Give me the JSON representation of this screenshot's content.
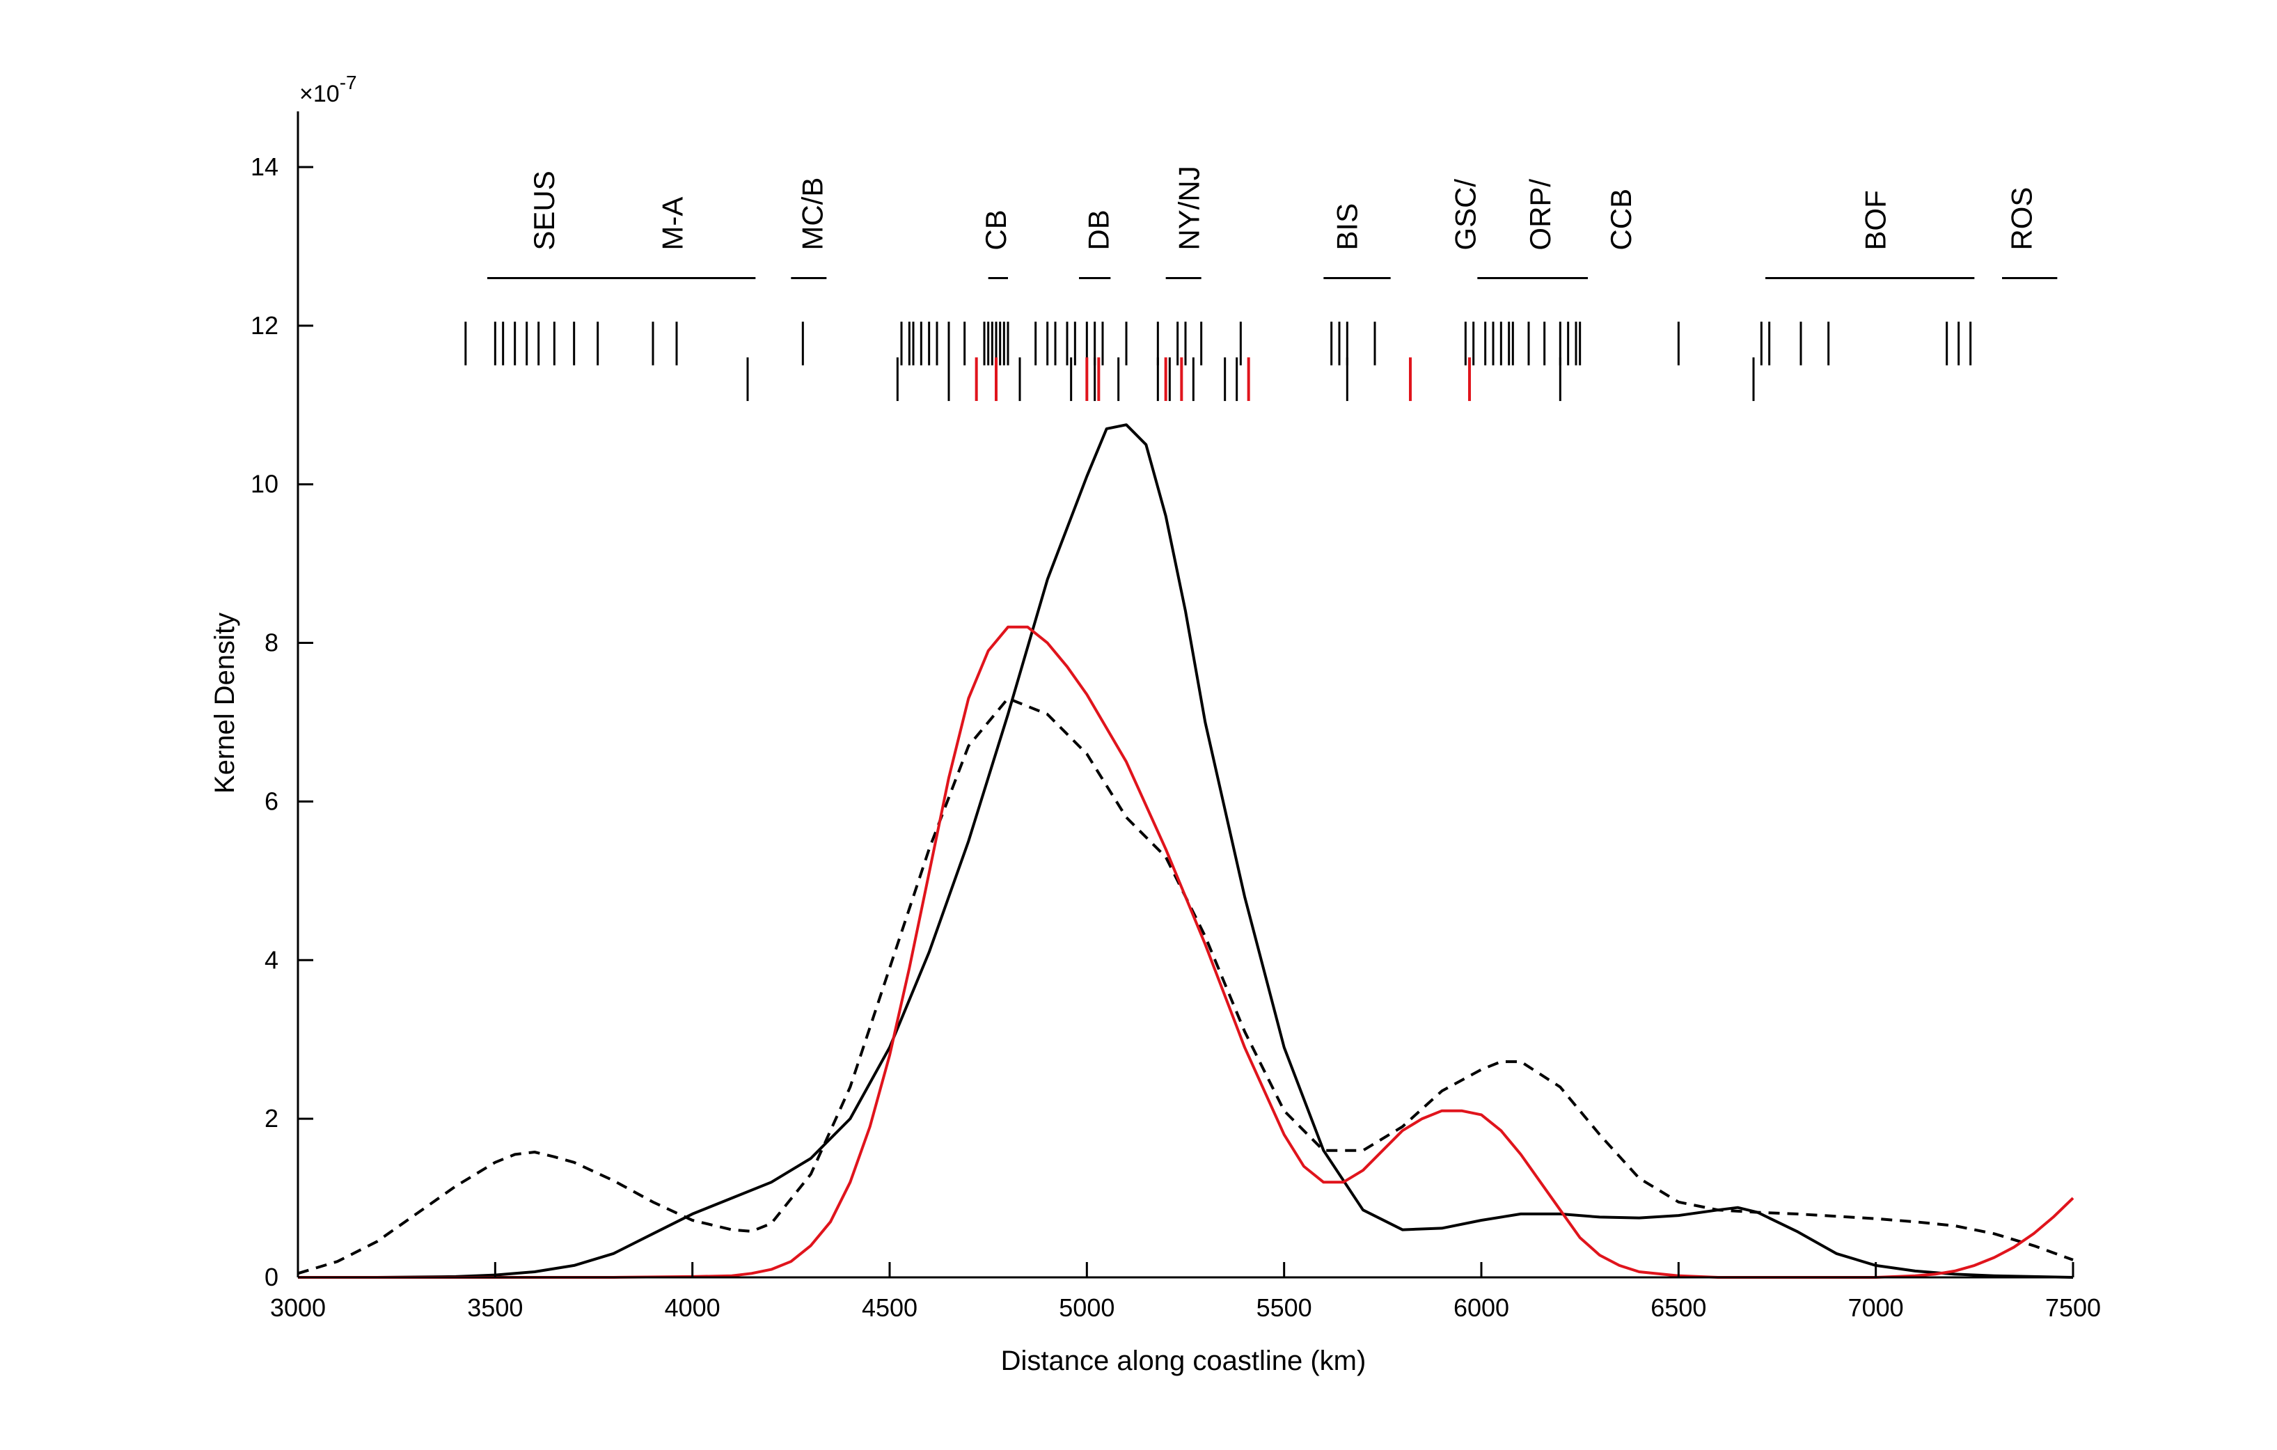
{
  "chart_data": {
    "type": "line",
    "xlabel": "Distance along coastline (km)",
    "ylabel": "Kernel Density",
    "y_multiplier": "×10",
    "y_multiplier_exp": "-7",
    "xlim": [
      3000,
      7500
    ],
    "ylim": [
      0,
      14.5
    ],
    "x_ticks": [
      3000,
      3500,
      4000,
      4500,
      5000,
      5500,
      6000,
      6500,
      7000,
      7500
    ],
    "y_ticks": [
      0,
      2,
      4,
      6,
      8,
      10,
      12,
      14
    ],
    "grid": false,
    "series": [
      {
        "style": "solid",
        "color": "#000000",
        "x": [
          3000,
          3200,
          3400,
          3500,
          3600,
          3700,
          3800,
          3900,
          4000,
          4100,
          4200,
          4300,
          4400,
          4500,
          4600,
          4700,
          4800,
          4900,
          5000,
          5050,
          5100,
          5150,
          5200,
          5250,
          5300,
          5400,
          5500,
          5600,
          5700,
          5800,
          5900,
          6000,
          6100,
          6200,
          6300,
          6400,
          6500,
          6600,
          6650,
          6700,
          6800,
          6900,
          7000,
          7100,
          7200,
          7300,
          7400,
          7500
        ],
        "y": [
          0,
          0,
          0.01,
          0.03,
          0.07,
          0.15,
          0.3,
          0.55,
          0.8,
          1.0,
          1.2,
          1.5,
          2.0,
          2.9,
          4.1,
          5.5,
          7.1,
          8.8,
          10.1,
          10.7,
          10.75,
          10.5,
          9.6,
          8.4,
          7.0,
          4.8,
          2.9,
          1.6,
          0.85,
          0.6,
          0.62,
          0.72,
          0.8,
          0.8,
          0.76,
          0.75,
          0.78,
          0.85,
          0.88,
          0.82,
          0.58,
          0.3,
          0.15,
          0.08,
          0.04,
          0.02,
          0.01,
          0
        ]
      },
      {
        "style": "dashed",
        "color": "#000000",
        "x": [
          3000,
          3100,
          3200,
          3300,
          3400,
          3500,
          3550,
          3600,
          3650,
          3700,
          3800,
          3900,
          4000,
          4100,
          4150,
          4200,
          4300,
          4400,
          4500,
          4600,
          4700,
          4800,
          4900,
          5000,
          5100,
          5200,
          5300,
          5400,
          5500,
          5600,
          5700,
          5800,
          5900,
          6000,
          6050,
          6100,
          6200,
          6300,
          6400,
          6500,
          6600,
          6700,
          6800,
          6900,
          7000,
          7100,
          7200,
          7300,
          7400,
          7500
        ],
        "y": [
          0.05,
          0.2,
          0.45,
          0.8,
          1.15,
          1.45,
          1.55,
          1.58,
          1.52,
          1.45,
          1.22,
          0.95,
          0.72,
          0.6,
          0.58,
          0.68,
          1.3,
          2.4,
          3.9,
          5.4,
          6.7,
          7.3,
          7.1,
          6.6,
          5.8,
          5.3,
          4.3,
          3.1,
          2.1,
          1.6,
          1.6,
          1.9,
          2.35,
          2.62,
          2.72,
          2.72,
          2.4,
          1.8,
          1.25,
          0.95,
          0.85,
          0.82,
          0.8,
          0.77,
          0.74,
          0.7,
          0.65,
          0.55,
          0.4,
          0.22
        ]
      },
      {
        "style": "solid",
        "color": "#e0141c",
        "x": [
          3000,
          3500,
          3800,
          4000,
          4100,
          4150,
          4200,
          4250,
          4300,
          4350,
          4400,
          4450,
          4500,
          4550,
          4600,
          4650,
          4700,
          4750,
          4800,
          4850,
          4900,
          4950,
          5000,
          5100,
          5200,
          5300,
          5400,
          5500,
          5550,
          5600,
          5650,
          5700,
          5750,
          5800,
          5850,
          5900,
          5950,
          6000,
          6050,
          6100,
          6150,
          6200,
          6250,
          6300,
          6350,
          6400,
          6500,
          6600,
          6700,
          6800,
          6900,
          7000,
          7050,
          7100,
          7150,
          7200,
          7250,
          7300,
          7350,
          7400,
          7450,
          7500
        ],
        "y": [
          0,
          0,
          0,
          0.01,
          0.02,
          0.05,
          0.1,
          0.2,
          0.4,
          0.7,
          1.2,
          1.9,
          2.8,
          3.9,
          5.1,
          6.3,
          7.3,
          7.9,
          8.2,
          8.2,
          8.0,
          7.7,
          7.35,
          6.5,
          5.4,
          4.2,
          2.9,
          1.8,
          1.4,
          1.2,
          1.2,
          1.35,
          1.6,
          1.85,
          2.0,
          2.1,
          2.1,
          2.05,
          1.85,
          1.55,
          1.2,
          0.85,
          0.5,
          0.28,
          0.15,
          0.07,
          0.02,
          0,
          0,
          0,
          0,
          0,
          0.01,
          0.02,
          0.04,
          0.08,
          0.15,
          0.25,
          0.38,
          0.55,
          0.76,
          1.0
        ]
      }
    ],
    "rug_row1": [
      3425,
      3500,
      3520,
      3550,
      3580,
      3610,
      3650,
      3700,
      3760,
      3900,
      3960,
      4280,
      4530,
      4550,
      4560,
      4580,
      4600,
      4620,
      4650,
      4690,
      4740,
      4750,
      4760,
      4770,
      4780,
      4790,
      4800,
      4870,
      4900,
      4920,
      4950,
      4970,
      5000,
      5020,
      5040,
      5100,
      5180,
      5230,
      5250,
      5290,
      5390,
      5620,
      5640,
      5660,
      5730,
      5960,
      5980,
      6010,
      6030,
      6050,
      6070,
      6080,
      6120,
      6160,
      6200,
      6220,
      6240,
      6250,
      6500,
      6710,
      6730,
      6810,
      6880,
      7180,
      7210,
      7240
    ],
    "rug_row2_black": [
      4140,
      4520,
      4650,
      4830,
      4960,
      5020,
      5080,
      5180,
      5210,
      5270,
      5350,
      5380,
      5660,
      6200,
      6690
    ],
    "rug_row2_red": [
      4720,
      4770,
      5000,
      5030,
      5200,
      5240,
      5410,
      5820,
      5970
    ],
    "regions": [
      {
        "label": "SEUS",
        "x": 3625,
        "span": [
          3480,
          4160
        ]
      },
      {
        "label": "M-A",
        "x": 3950,
        "span": null
      },
      {
        "label": "MC/B",
        "x": 4305,
        "span": [
          4250,
          4340
        ]
      },
      {
        "label": "CB",
        "x": 4770,
        "span": [
          4750,
          4800
        ]
      },
      {
        "label": "DB",
        "x": 5030,
        "span": [
          4980,
          5060
        ]
      },
      {
        "label": "NY/NJ",
        "x": 5260,
        "span": [
          5200,
          5290
        ]
      },
      {
        "label": "BIS",
        "x": 5660,
        "span": [
          5600,
          5770
        ]
      },
      {
        "label": "GSC/",
        "x": 5960,
        "span": [
          5990,
          6270
        ]
      },
      {
        "label": "ORP/",
        "x": 6150,
        "span": null
      },
      {
        "label": "CCB",
        "x": 6355,
        "span": null
      },
      {
        "label": "BOF",
        "x": 7000,
        "span": [
          6720,
          7250
        ]
      },
      {
        "label": "ROS",
        "x": 7370,
        "span": [
          7320,
          7460
        ]
      }
    ]
  }
}
